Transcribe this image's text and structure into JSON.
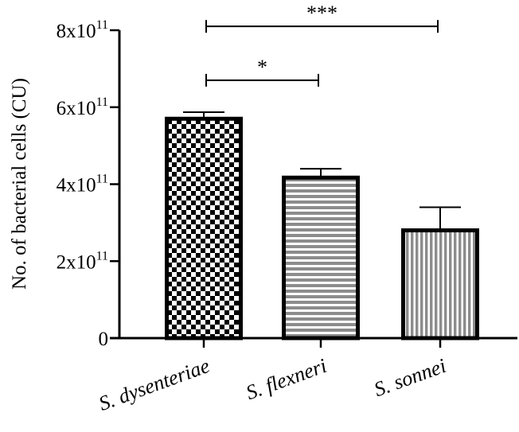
{
  "chart_data": {
    "type": "bar",
    "title": "",
    "xlabel": "",
    "ylabel": "No. of bacterial cells (CU)",
    "ylim": [
      0,
      800000000000
    ],
    "y_ticks": [
      {
        "value": 0,
        "base": "0",
        "exp": ""
      },
      {
        "value": 200000000000,
        "base": "2x10",
        "exp": "11"
      },
      {
        "value": 400000000000,
        "base": "4x10",
        "exp": "11"
      },
      {
        "value": 600000000000,
        "base": "6x10",
        "exp": "11"
      },
      {
        "value": 800000000000,
        "base": "8x10",
        "exp": "11"
      }
    ],
    "categories": [
      "S. dysenteriae",
      "S. flexneri",
      "S. sonnei"
    ],
    "values": [
      570000000000,
      417000000000,
      280000000000
    ],
    "errors": [
      17000000000,
      23000000000,
      60000000000
    ],
    "patterns": [
      "checkerboard",
      "horizontal-stripes",
      "vertical-stripes"
    ],
    "significance": [
      {
        "from": 0,
        "to": 2,
        "label": "***",
        "y": 810000000000
      },
      {
        "from": 0,
        "to": 1,
        "label": "*",
        "y": 670000000000
      }
    ],
    "colors": {
      "bar_edge": "#000000",
      "fill_light": "#ffffff",
      "fill_dark": "#000000",
      "stripe": "#8c8c8c"
    }
  }
}
